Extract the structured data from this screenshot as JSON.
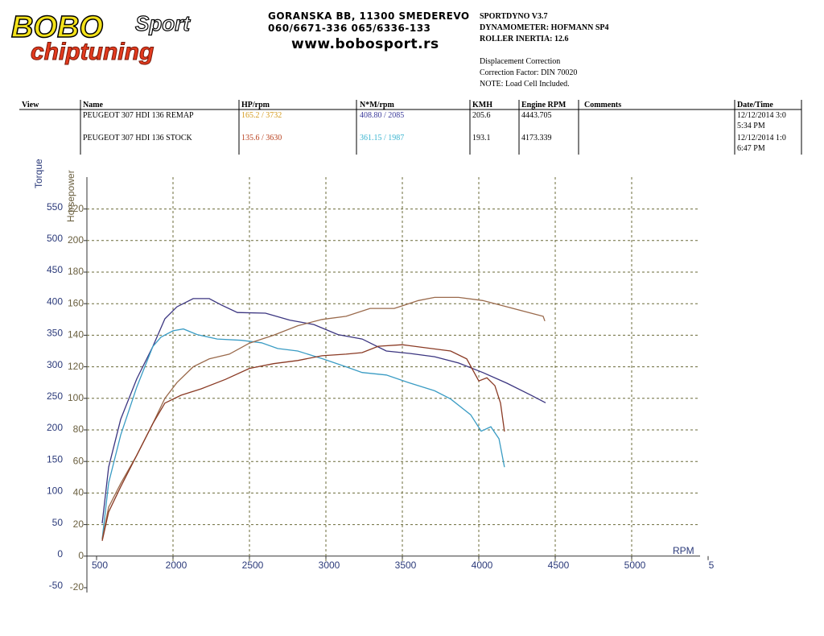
{
  "header": {
    "logo": [
      "BOBO",
      "Sport",
      "chiptuning"
    ],
    "address": [
      "GORANSKA BB, 11300 SMEDEREVO",
      "060/6671-336 065/6336-133",
      "www.bobosport.rs"
    ],
    "dyno": [
      "SPORTDYNO V3.7",
      "DYNAMOMETER: HOFMANN SP4",
      "ROLLER INERTIA:  12.6"
    ],
    "correction": [
      "Displacement Correction",
      "Correction Factor: DIN 70020",
      "NOTE: Load Cell Included."
    ]
  },
  "table": {
    "columns": [
      "View",
      "Name",
      "HP/rpm",
      "N*M/rpm",
      "KMH",
      "Engine RPM",
      "Comments",
      "Date/Time"
    ],
    "rows": [
      {
        "name": "PEUGEOT 307 HDI 136 REMAP",
        "hp_rpm": "165.2 / 3732",
        "nm_rpm": "408.80 / 2085",
        "kmh": "205.6",
        "engine_rpm": "4443.705",
        "date": "12/12/2014 3:0",
        "time": "5:34 PM"
      },
      {
        "name": "PEUGEOT 307 HDI 136 STOCK",
        "hp_rpm": "135.6 / 3630",
        "nm_rpm": "361.15 / 1987",
        "kmh": "193.1",
        "engine_rpm": "4173.339",
        "date": "12/12/2014 1:0",
        "time": "6:47 PM"
      }
    ]
  },
  "chart_data": {
    "type": "line",
    "x_label": "RPM",
    "y_label": "Torque",
    "y2_label": "Horsepower",
    "xlim": [
      1500,
      5500
    ],
    "xticks": [
      {
        "value": 1500,
        "label": "500"
      },
      2000,
      2500,
      3000,
      3500,
      4000,
      4500,
      5000,
      {
        "value": 5500,
        "label": "5"
      }
    ],
    "ylim": [
      -50,
      575
    ],
    "yticks": [
      -50,
      0,
      50,
      100,
      150,
      200,
      250,
      300,
      350,
      400,
      450,
      500,
      550
    ],
    "y2lim": [
      -20,
      230
    ],
    "y2ticks": [
      -20,
      0,
      20,
      40,
      60,
      80,
      100,
      120,
      140,
      160,
      180,
      200,
      220
    ],
    "grid": true,
    "series": [
      {
        "color": "#3b3580",
        "axis": "y",
        "x": [
          1537,
          1579,
          1658,
          1763,
          1868,
          1947,
          2026,
          2132,
          2237,
          2316,
          2421,
          2605,
          2763,
          2921,
          3079,
          3237,
          3395,
          3553,
          3711,
          3868,
          4026,
          4184,
          4342,
          4437
        ],
        "values": [
          52,
          141,
          217,
          281,
          332,
          376,
          395,
          408,
          408,
          398,
          386,
          385,
          374,
          367,
          351,
          344,
          325,
          321,
          316,
          306,
          291,
          274,
          255,
          243
        ]
      },
      {
        "color": "#3a9cc4",
        "axis": "y",
        "x": [
          1537,
          1579,
          1658,
          1763,
          1868,
          1921,
          2000,
          2068,
          2158,
          2289,
          2447,
          2579,
          2684,
          2816,
          2974,
          3132,
          3237,
          3395,
          3553,
          3711,
          3816,
          3947,
          4016,
          4079,
          4132,
          4168
        ],
        "values": [
          27,
          116,
          192,
          268,
          332,
          347,
          357,
          360,
          351,
          344,
          342,
          338,
          329,
          325,
          313,
          300,
          291,
          287,
          274,
          262,
          249,
          224,
          198,
          205,
          186,
          141
        ]
      },
      {
        "color": "#9a6a4c",
        "axis": "y2",
        "x": [
          1537,
          1579,
          1658,
          1763,
          1868,
          1947,
          2026,
          2132,
          2237,
          2368,
          2500,
          2658,
          2816,
          2974,
          3132,
          3289,
          3447,
          3605,
          3711,
          3868,
          4026,
          4184,
          4342,
          4421,
          4432
        ],
        "values": [
          10.7,
          31,
          46,
          64,
          84,
          100,
          110,
          120,
          125,
          128,
          135,
          140,
          146,
          150,
          152,
          157,
          157,
          162,
          164,
          164,
          162,
          158,
          154,
          152,
          149
        ]
      },
      {
        "color": "#8a3a24",
        "axis": "y2",
        "x": [
          1537,
          1579,
          1658,
          1763,
          1868,
          1947,
          2053,
          2184,
          2342,
          2500,
          2658,
          2816,
          2974,
          3132,
          3237,
          3342,
          3500,
          3658,
          3816,
          3921,
          4000,
          4053,
          4105,
          4142,
          4168
        ],
        "values": [
          9.7,
          28,
          44,
          64,
          84,
          97,
          102,
          106,
          112,
          119,
          122,
          124,
          127,
          128,
          129,
          133,
          134,
          132,
          130,
          125,
          111,
          113,
          108,
          97,
          79
        ]
      }
    ]
  }
}
